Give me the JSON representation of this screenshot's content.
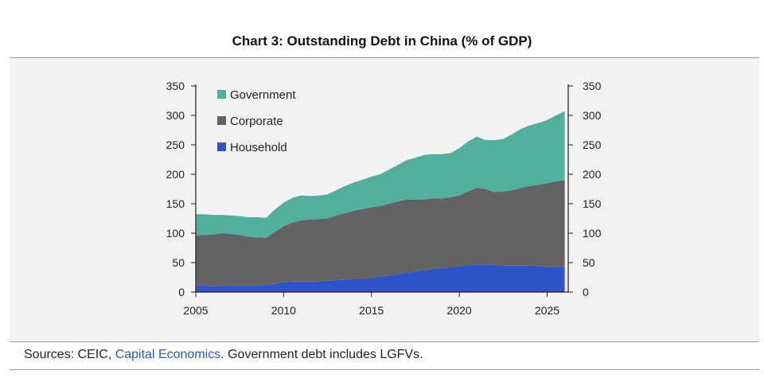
{
  "title": "Chart 3: Outstanding Debt in China (% of GDP)",
  "footer": {
    "prefix": "Sources: CEIC, ",
    "link_text": "Capital Economics",
    "suffix": ". Government debt includes LGFVs."
  },
  "chart_data": {
    "type": "area",
    "stacked": true,
    "xlim": [
      2005,
      2026.2
    ],
    "ylim": [
      0,
      350
    ],
    "x_ticks": [
      2005,
      2010,
      2015,
      2020,
      2025
    ],
    "y_ticks": [
      0,
      50,
      100,
      150,
      200,
      250,
      300,
      350
    ],
    "legend_position": "top-left",
    "x": [
      2005,
      2005.5,
      2006,
      2006.5,
      2007,
      2007.5,
      2008,
      2008.5,
      2009,
      2009.5,
      2010,
      2010.5,
      2011,
      2011.5,
      2012,
      2012.5,
      2013,
      2013.5,
      2014,
      2014.5,
      2015,
      2015.5,
      2016,
      2016.5,
      2017,
      2017.5,
      2018,
      2018.5,
      2019,
      2019.5,
      2020,
      2020.5,
      2021,
      2021.5,
      2022,
      2022.5,
      2023,
      2023.5,
      2024,
      2024.5,
      2025,
      2025.5,
      2026
    ],
    "series": [
      {
        "name": "Household",
        "color": "#2f54c8",
        "values": [
          11,
          11,
          10,
          10,
          11,
          11,
          11,
          11,
          12,
          14,
          17,
          18,
          18,
          18,
          18,
          19,
          20,
          21,
          22,
          23,
          24,
          26,
          28,
          30,
          33,
          35,
          37,
          39,
          41,
          42,
          44,
          46,
          47,
          47,
          46,
          45,
          45,
          45,
          45,
          44,
          43,
          43,
          43
        ]
      },
      {
        "name": "Corporate",
        "color": "#636363",
        "values": [
          85,
          86,
          88,
          90,
          88,
          86,
          83,
          82,
          80,
          88,
          95,
          100,
          104,
          105,
          106,
          106,
          110,
          113,
          116,
          118,
          120,
          120,
          122,
          124,
          124,
          122,
          120,
          120,
          118,
          119,
          120,
          125,
          130,
          128,
          124,
          126,
          128,
          132,
          135,
          138,
          142,
          145,
          147
        ]
      },
      {
        "name": "Government",
        "color": "#52ae9f",
        "values": [
          36,
          35,
          33,
          31,
          31,
          32,
          33,
          34,
          34,
          38,
          40,
          42,
          42,
          40,
          40,
          41,
          43,
          46,
          48,
          50,
          52,
          54,
          58,
          62,
          67,
          71,
          76,
          75,
          75,
          75,
          80,
          85,
          87,
          83,
          88,
          89,
          95,
          100,
          103,
          105,
          107,
          112,
          117
        ]
      }
    ]
  }
}
